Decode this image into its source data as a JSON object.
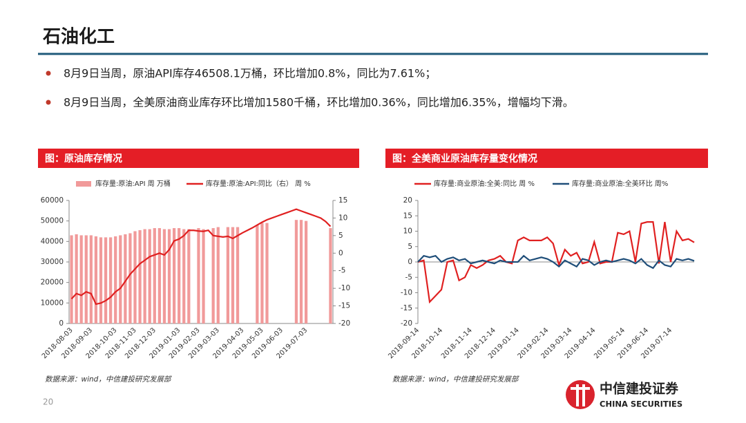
{
  "header": {
    "title": "石油化工"
  },
  "bullets": [
    "8月9日当周，原油API库存46508.1万桶，环比增加0.8%，同比为7.61%；",
    "8月9日当周，全美原油商业库存环比增加1580千桶，环比增加0.36%，同比增加6.35%，增幅均下滑。"
  ],
  "chart_data": [
    {
      "type": "bar",
      "title": "图：原油库存情况",
      "source": "数据来源：wind，中信建投研究发展部",
      "categories": [
        "2018-08-03",
        null,
        null,
        null,
        "2018-09-03",
        null,
        null,
        null,
        null,
        "2018-10-03",
        null,
        null,
        null,
        "2018-11-03",
        null,
        null,
        null,
        "2018-12-03",
        null,
        null,
        null,
        null,
        "2019-01-03",
        null,
        null,
        null,
        "2019-02-03",
        null,
        null,
        null,
        "2019-03-03",
        null,
        null,
        null,
        null,
        "2019-04-03",
        null,
        null,
        null,
        "2019-05-03",
        null,
        null,
        null,
        "2019-06-03",
        null,
        null,
        null,
        null,
        "2019-07-03",
        null,
        null,
        null,
        null,
        null
      ],
      "series": [
        {
          "name": "库存量:原油:API 周 万桶",
          "type": "bar",
          "color": "#f19a9a",
          "values": [
            43000,
            43500,
            43000,
            43000,
            43000,
            42500,
            42000,
            42000,
            42000,
            42500,
            43000,
            43500,
            44000,
            45000,
            45500,
            46000,
            46000,
            46500,
            46500,
            46000,
            46000,
            46500,
            46500,
            46000,
            46000,
            null,
            46500,
            46000,
            null,
            46500,
            47000,
            null,
            47000,
            47000,
            47000,
            null,
            null,
            null,
            48000,
            49000,
            49000,
            null,
            null,
            null,
            null,
            null,
            50500,
            50500,
            50000,
            null,
            null,
            null,
            null,
            46508.1
          ]
        },
        {
          "name": "库存量:原油:API:同比（右） 周 %",
          "type": "line",
          "axis": "y2",
          "color": "#e02020",
          "values": [
            -13,
            -11.5,
            -12,
            -11,
            -11.5,
            -14.5,
            -14.2,
            -13.5,
            -12.5,
            -11,
            -10,
            -8,
            -6,
            -4.5,
            -3,
            -2,
            -1,
            -0.5,
            0,
            -0.5,
            1,
            3.5,
            4,
            5,
            6.5,
            6.5,
            6.3,
            6.2,
            6.5,
            5,
            4.8,
            4.6,
            4.8,
            4.2,
            5,
            5.8,
            6.5,
            7.2,
            8,
            8.8,
            9.5,
            10,
            10.5,
            11,
            11.5,
            12,
            12.5,
            12,
            11.5,
            11,
            10.5,
            10,
            9,
            7.61
          ]
        }
      ],
      "ylim": [
        0,
        60000
      ],
      "yticks": [
        0,
        10000,
        20000,
        30000,
        40000,
        50000,
        60000
      ],
      "y2lim": [
        -20,
        15
      ],
      "y2ticks": [
        -20,
        -15,
        -10,
        -5,
        0,
        5,
        10,
        15
      ]
    },
    {
      "type": "line",
      "title": "图：全美商业原油库存量变化情况",
      "source": "数据来源：wind，中信建投研究发展部",
      "categories": [
        "2018-09-14",
        null,
        null,
        null,
        "2018-10-14",
        null,
        null,
        null,
        null,
        "2018-11-14",
        null,
        null,
        null,
        "2018-12-14",
        null,
        null,
        null,
        "2019-01-14",
        null,
        null,
        null,
        null,
        "2019-02-14",
        null,
        null,
        null,
        "2019-03-14",
        null,
        null,
        null,
        "2019-04-14",
        null,
        null,
        null,
        null,
        "2019-05-14",
        null,
        null,
        null,
        "2019-06-14",
        null,
        null,
        null,
        "2019-07-14",
        null,
        null,
        null,
        null
      ],
      "series": [
        {
          "name": "库存量:商业原油:全美:同比 周 %",
          "color": "#e02020",
          "values": [
            0,
            0.5,
            -13,
            -11,
            -9,
            0,
            0.5,
            -6,
            -5,
            -1,
            -2,
            -1,
            0.5,
            1,
            2,
            0,
            -0.5,
            7,
            8,
            7,
            7,
            7,
            8,
            6,
            -1,
            4,
            2,
            3,
            -0.5,
            0,
            6.5,
            -0.5,
            0,
            0,
            9.5,
            9,
            10,
            0,
            12.5,
            13,
            13,
            -0.5,
            13,
            0,
            10,
            7,
            7.5,
            6.35
          ]
        },
        {
          "name": "库存量:商业原油:全美环比 周%",
          "color": "#1f4e79",
          "values": [
            0,
            2,
            1.5,
            2,
            0,
            1,
            1.5,
            0.5,
            1,
            -0.5,
            0,
            0.5,
            0,
            -0.5,
            0.5,
            0,
            0,
            0,
            2,
            0.5,
            1,
            1.5,
            1,
            0,
            -1.5,
            0.5,
            -0.5,
            -1.5,
            1,
            0.5,
            -1,
            0,
            0.5,
            0,
            0.5,
            1,
            0.5,
            -0.5,
            1,
            -1,
            -2,
            0.5,
            -1,
            -1.5,
            1,
            0.5,
            1,
            0.36
          ]
        }
      ],
      "ylim": [
        -20,
        20
      ],
      "yticks": [
        -20,
        -15,
        -10,
        -5,
        0,
        5,
        10,
        15,
        20
      ]
    }
  ],
  "footer": {
    "page": "20",
    "logo": "中信建投证券",
    "logo_en": "CHINA SECURITIES"
  }
}
